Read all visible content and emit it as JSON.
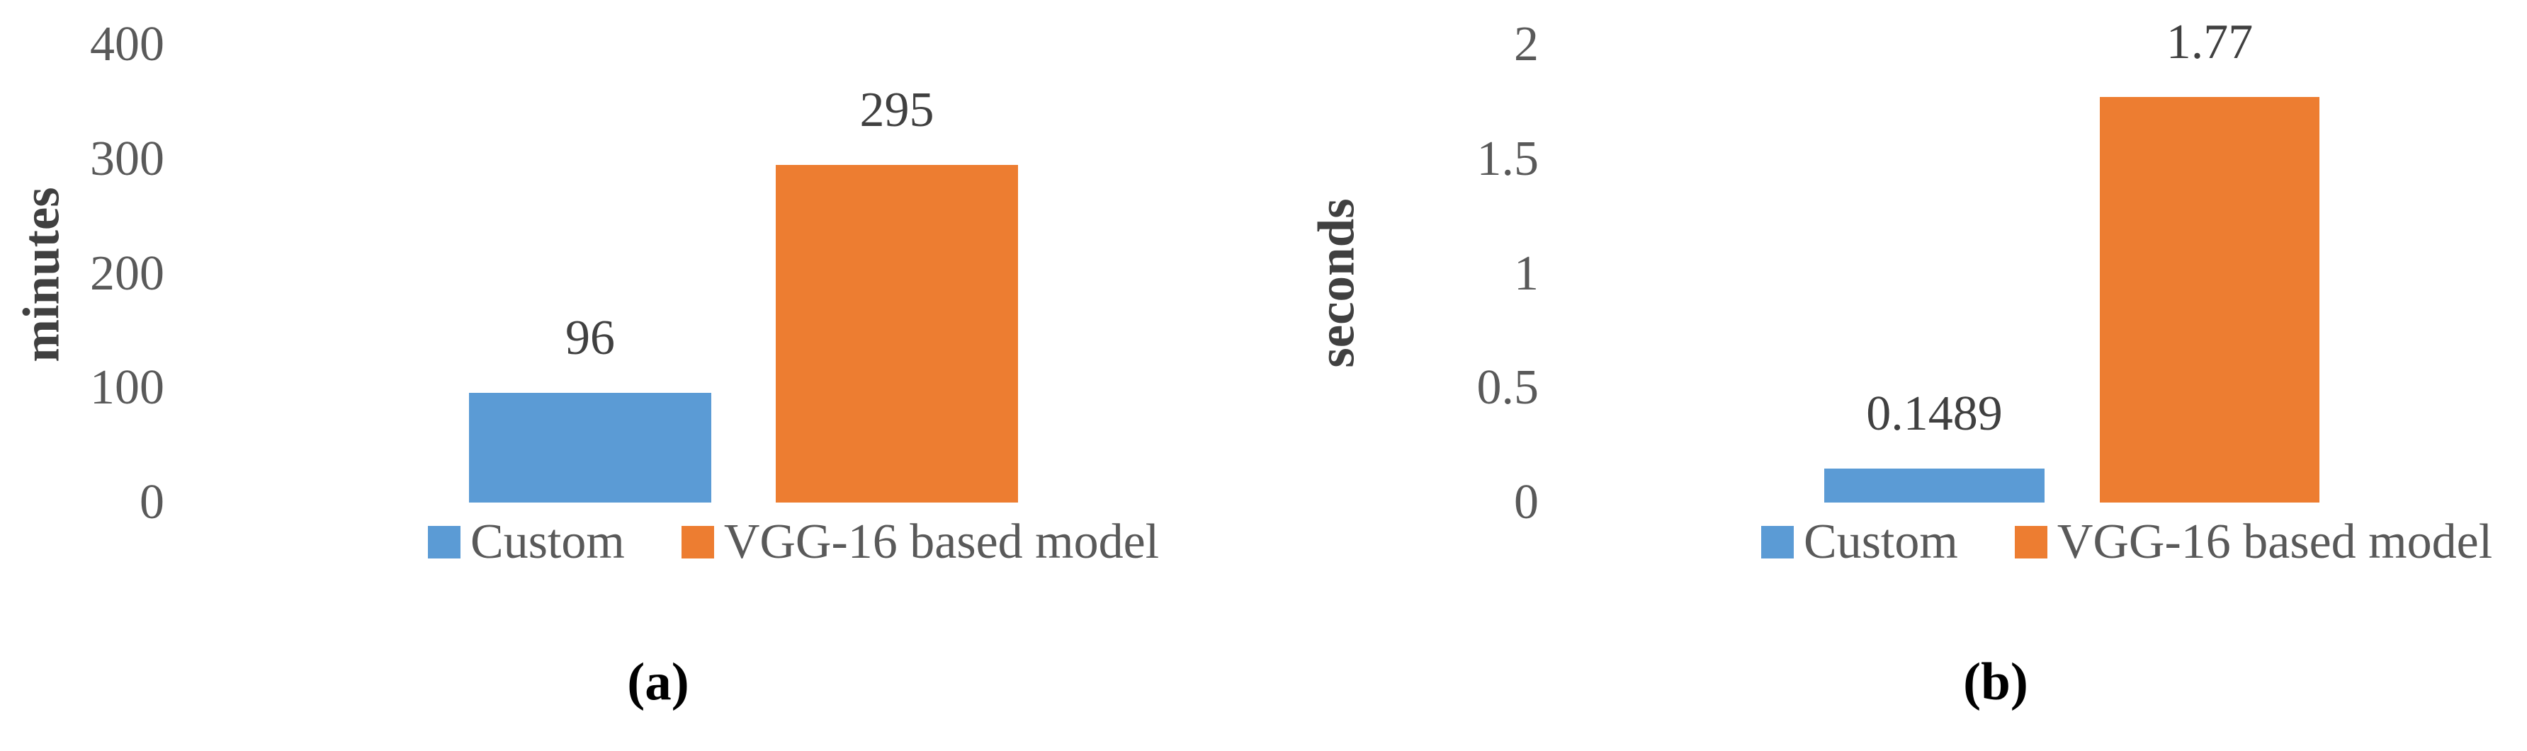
{
  "figure": {
    "background_color": "#ffffff",
    "text_color_axis": "#595959",
    "text_color_labels": "#404040",
    "caption_color": "#000000"
  },
  "chart_data": [
    {
      "type": "bar",
      "title": "",
      "xlabel": "",
      "ylabel": "minutes",
      "caption": "(a)",
      "categories": [
        "Custom",
        "VGG-16 based model"
      ],
      "values": [
        96,
        295
      ],
      "value_labels": [
        "96",
        "295"
      ],
      "colors": [
        "#5B9BD5",
        "#ED7D31"
      ],
      "ylim": [
        0,
        400
      ],
      "yticks": [
        0,
        100,
        200,
        300,
        400
      ],
      "ytick_labels": [
        "0",
        "100",
        "200",
        "300",
        "400"
      ],
      "grid": false,
      "legend_position": "bottom",
      "legend": [
        {
          "label": "Custom",
          "color": "#5B9BD5"
        },
        {
          "label": "VGG-16 based model",
          "color": "#ED7D31"
        }
      ]
    },
    {
      "type": "bar",
      "title": "",
      "xlabel": "",
      "ylabel": "seconds",
      "caption": "(b)",
      "categories": [
        "Custom",
        "VGG-16 based model"
      ],
      "values": [
        0.1489,
        1.77
      ],
      "value_labels": [
        "0.1489",
        "1.77"
      ],
      "colors": [
        "#5B9BD5",
        "#ED7D31"
      ],
      "ylim": [
        0,
        2
      ],
      "yticks": [
        0,
        0.5,
        1,
        1.5,
        2
      ],
      "ytick_labels": [
        "0",
        "0.5",
        "1",
        "1.5",
        "2"
      ],
      "grid": false,
      "legend_position": "bottom",
      "legend": [
        {
          "label": "Custom",
          "color": "#5B9BD5"
        },
        {
          "label": "VGG-16 based model",
          "color": "#ED7D31"
        }
      ]
    }
  ]
}
